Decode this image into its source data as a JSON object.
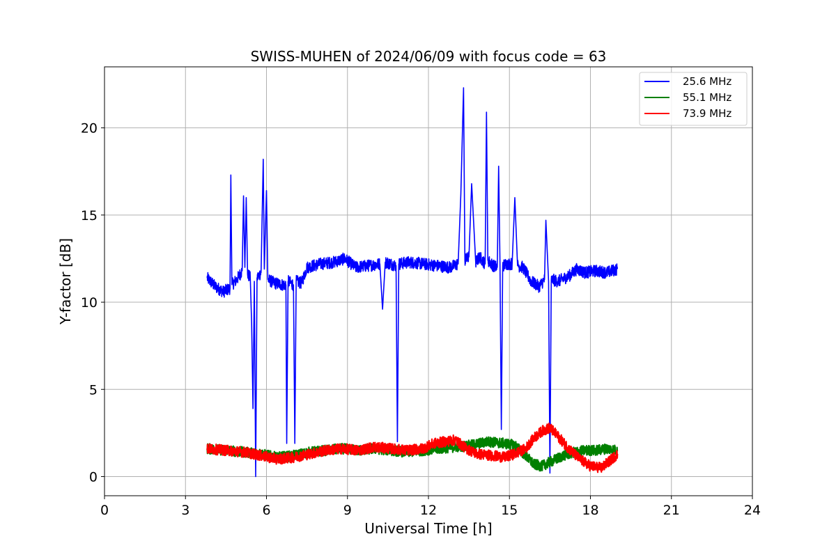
{
  "chart_data": {
    "type": "line",
    "title": "SWISS-MUHEN of 2024/06/09 with focus code = 63",
    "xlabel": "Universal Time [h]",
    "ylabel": "Y-factor [dB]",
    "xlim": [
      0,
      24
    ],
    "ylim": [
      -1.1,
      23.5
    ],
    "xticks": [
      0,
      3,
      6,
      9,
      12,
      15,
      18,
      21,
      24
    ],
    "yticks": [
      0,
      5,
      10,
      15,
      20
    ],
    "grid": true,
    "legend_position": "top-right",
    "series": [
      {
        "name": "25.6 MHz",
        "color": "#0000ff",
        "x": [
          3.8,
          4.1,
          4.4,
          4.65,
          4.68,
          4.72,
          4.9,
          5.1,
          5.15,
          5.2,
          5.25,
          5.3,
          5.4,
          5.45,
          5.5,
          5.55,
          5.6,
          5.65,
          5.7,
          5.8,
          5.88,
          5.92,
          6.0,
          6.05,
          6.3,
          6.6,
          6.72,
          6.75,
          6.8,
          7.0,
          7.05,
          7.1,
          7.3,
          7.5,
          8.0,
          8.5,
          8.9,
          9.3,
          9.8,
          10.2,
          10.3,
          10.4,
          10.8,
          10.85,
          10.9,
          11.3,
          11.8,
          12.3,
          12.8,
          13.1,
          13.2,
          13.3,
          13.35,
          13.5,
          13.6,
          13.75,
          13.9,
          14.1,
          14.15,
          14.2,
          14.4,
          14.55,
          14.6,
          14.65,
          14.7,
          14.75,
          14.9,
          15.1,
          15.2,
          15.3,
          15.5,
          15.8,
          16.1,
          16.3,
          16.35,
          16.45,
          16.5,
          16.55,
          16.8,
          17.2,
          17.5,
          17.8,
          18.2,
          18.6,
          19.0
        ],
        "y": [
          11.4,
          10.9,
          10.6,
          10.8,
          17.3,
          11.0,
          11.3,
          11.8,
          16.1,
          12.0,
          16.0,
          11.6,
          11.4,
          8.8,
          3.9,
          11.2,
          0.0,
          11.4,
          11.5,
          11.7,
          18.2,
          11.9,
          16.4,
          11.3,
          11.1,
          11.0,
          11.0,
          1.9,
          11.2,
          11.0,
          1.9,
          11.2,
          11.1,
          12.0,
          12.2,
          12.3,
          12.5,
          12.0,
          12.1,
          12.2,
          9.6,
          12.3,
          12.1,
          2.0,
          12.2,
          12.3,
          12.2,
          12.1,
          12.0,
          12.2,
          16.2,
          22.3,
          12.4,
          12.6,
          16.8,
          12.3,
          12.6,
          12.2,
          20.9,
          12.4,
          12.1,
          12.0,
          17.8,
          12.2,
          2.7,
          12.1,
          12.2,
          12.2,
          16.0,
          12.1,
          12.0,
          11.2,
          10.9,
          11.3,
          14.7,
          11.2,
          0.2,
          11.3,
          11.2,
          11.5,
          11.9,
          11.7,
          11.8,
          11.7,
          11.9
        ]
      },
      {
        "name": "55.1 MHz",
        "color": "#008000",
        "x": [
          3.8,
          4.5,
          5.2,
          5.8,
          6.4,
          7.0,
          7.6,
          8.2,
          8.8,
          9.4,
          10.0,
          10.6,
          11.2,
          11.8,
          12.4,
          13.0,
          13.6,
          14.2,
          14.8,
          15.2,
          15.6,
          15.9,
          16.2,
          16.6,
          17.0,
          17.4,
          17.8,
          18.2,
          18.6,
          19.0
        ],
        "y": [
          1.6,
          1.5,
          1.4,
          1.3,
          1.1,
          1.2,
          1.4,
          1.5,
          1.6,
          1.5,
          1.6,
          1.5,
          1.4,
          1.5,
          1.6,
          1.7,
          1.8,
          2.0,
          1.9,
          1.8,
          1.2,
          0.7,
          0.6,
          0.9,
          1.2,
          1.4,
          1.5,
          1.5,
          1.6,
          1.5
        ]
      },
      {
        "name": "73.9 MHz",
        "color": "#ff0000",
        "x": [
          3.8,
          4.5,
          5.2,
          5.8,
          6.4,
          7.0,
          7.6,
          8.2,
          8.8,
          9.4,
          10.0,
          10.6,
          11.2,
          11.8,
          12.2,
          12.6,
          13.0,
          13.4,
          13.8,
          14.4,
          14.8,
          15.2,
          15.6,
          15.9,
          16.2,
          16.5,
          16.8,
          17.2,
          17.6,
          18.0,
          18.4,
          18.8,
          19.0
        ],
        "y": [
          1.6,
          1.5,
          1.4,
          1.2,
          1.0,
          1.1,
          1.3,
          1.5,
          1.6,
          1.5,
          1.7,
          1.6,
          1.5,
          1.6,
          1.9,
          2.0,
          2.1,
          1.6,
          1.3,
          1.2,
          1.1,
          1.3,
          1.6,
          2.2,
          2.6,
          2.8,
          2.3,
          1.6,
          1.0,
          0.6,
          0.5,
          1.0,
          1.3
        ]
      }
    ]
  }
}
